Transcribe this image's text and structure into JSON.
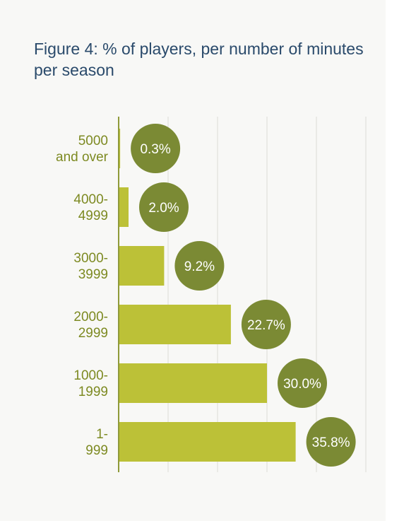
{
  "chart_data": {
    "type": "bar",
    "orientation": "horizontal",
    "title": "Figure 4: % of players, per number of minutes per season",
    "categories": [
      [
        "5000",
        "and over"
      ],
      [
        "4000-",
        "4999"
      ],
      [
        "3000-",
        "3999"
      ],
      [
        "2000-",
        "2999"
      ],
      [
        "1000-",
        "1999"
      ],
      [
        "1-",
        "999"
      ]
    ],
    "values": [
      0.3,
      2.0,
      9.2,
      22.7,
      30.0,
      35.8
    ],
    "value_labels": [
      "0.3%",
      "2.0%",
      "9.2%",
      "22.7%",
      "30.0%",
      "35.8%"
    ],
    "xlim": [
      0,
      50
    ],
    "grid": true,
    "colors": {
      "bar": "#bcc137",
      "bubble": "#7b8a34",
      "axis": "#8f9a3a",
      "grid": "#dcdcd6"
    }
  }
}
